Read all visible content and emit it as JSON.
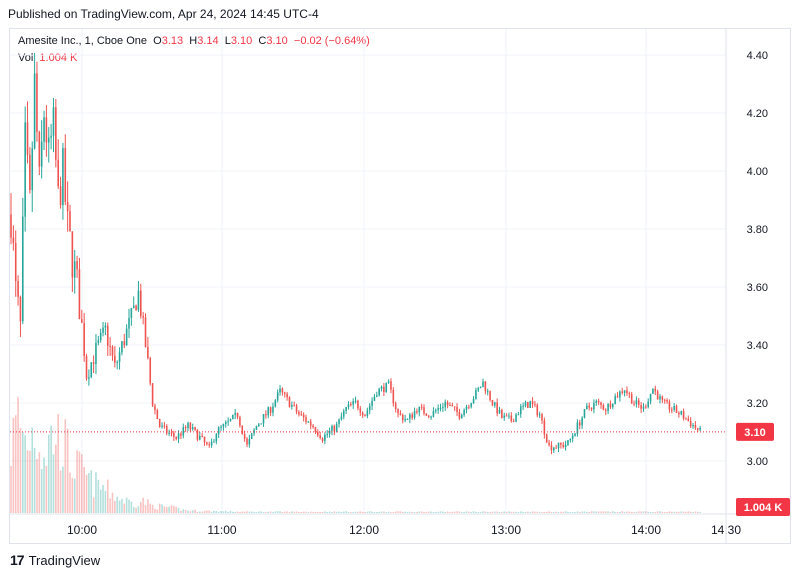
{
  "published": "Published on TradingView.com, Apr 24, 2024 14:45 UTC-4",
  "legend": {
    "symbol": "Amesite Inc., 1, Cboe One",
    "o_label": "O",
    "o": "3.13",
    "h_label": "H",
    "h": "3.14",
    "l_label": "L",
    "l": "3.10",
    "c_label": "C",
    "c": "3.10",
    "change": "−0.02 (−0.64%)",
    "vol_label": "Vol",
    "vol": "1.004 K"
  },
  "footer": {
    "brand": "TradingView"
  },
  "colors": {
    "up": "#26a69a",
    "down": "#ef5350",
    "grid": "#f0f3fa",
    "last": "#f23645"
  },
  "chart_data": {
    "type": "candlestick",
    "y_ticks": [
      "4.40",
      "4.20",
      "4.00",
      "3.80",
      "3.60",
      "3.40",
      "3.20",
      "3.00"
    ],
    "ylim": [
      2.82,
      4.49
    ],
    "x_ticks": [
      "10:00",
      "11:00",
      "12:00",
      "13:00",
      "14:00",
      "14:30"
    ],
    "last_price_label": "3.10",
    "last_price": 3.1,
    "volume_label": "1.004 K",
    "bar_count": 300,
    "close_anchors": [
      [
        0,
        3.85
      ],
      [
        2,
        3.58
      ],
      [
        4,
        3.45
      ],
      [
        6,
        4.1
      ],
      [
        8,
        3.88
      ],
      [
        10,
        4.3
      ],
      [
        12,
        3.95
      ],
      [
        14,
        4.2
      ],
      [
        16,
        4.05
      ],
      [
        18,
        4.15
      ],
      [
        20,
        3.9
      ],
      [
        22,
        4.0
      ],
      [
        24,
        3.8
      ],
      [
        26,
        3.7
      ],
      [
        29,
        3.55
      ],
      [
        32,
        3.3
      ],
      [
        36,
        3.38
      ],
      [
        40,
        3.45
      ],
      [
        44,
        3.32
      ],
      [
        48,
        3.42
      ],
      [
        52,
        3.52
      ],
      [
        54,
        3.58
      ],
      [
        57,
        3.4
      ],
      [
        60,
        3.2
      ],
      [
        63,
        3.12
      ],
      [
        66,
        3.1
      ],
      [
        70,
        3.08
      ],
      [
        75,
        3.12
      ],
      [
        80,
        3.08
      ],
      [
        84,
        3.04
      ],
      [
        87,
        3.1
      ],
      [
        92,
        3.13
      ],
      [
        96,
        3.16
      ],
      [
        100,
        3.05
      ],
      [
        104,
        3.12
      ],
      [
        110,
        3.18
      ],
      [
        114,
        3.24
      ],
      [
        118,
        3.2
      ],
      [
        122,
        3.16
      ],
      [
        128,
        3.12
      ],
      [
        132,
        3.08
      ],
      [
        138,
        3.12
      ],
      [
        142,
        3.18
      ],
      [
        146,
        3.2
      ],
      [
        150,
        3.16
      ],
      [
        155,
        3.24
      ],
      [
        160,
        3.26
      ],
      [
        164,
        3.16
      ],
      [
        168,
        3.14
      ],
      [
        172,
        3.18
      ],
      [
        178,
        3.16
      ],
      [
        184,
        3.2
      ],
      [
        190,
        3.16
      ],
      [
        196,
        3.22
      ],
      [
        200,
        3.27
      ],
      [
        204,
        3.2
      ],
      [
        208,
        3.15
      ],
      [
        212,
        3.14
      ],
      [
        216,
        3.18
      ],
      [
        220,
        3.2
      ],
      [
        224,
        3.16
      ],
      [
        228,
        3.05
      ],
      [
        232,
        3.05
      ],
      [
        236,
        3.06
      ],
      [
        240,
        3.12
      ],
      [
        244,
        3.18
      ],
      [
        248,
        3.2
      ],
      [
        252,
        3.18
      ],
      [
        256,
        3.22
      ],
      [
        260,
        3.25
      ],
      [
        264,
        3.2
      ],
      [
        268,
        3.18
      ],
      [
        272,
        3.25
      ],
      [
        276,
        3.2
      ],
      [
        280,
        3.18
      ],
      [
        284,
        3.16
      ],
      [
        288,
        3.13
      ],
      [
        292,
        3.1
      ]
    ],
    "volume_anchors": [
      [
        0,
        0.55
      ],
      [
        3,
        0.8
      ],
      [
        6,
        0.6
      ],
      [
        10,
        0.7
      ],
      [
        14,
        0.5
      ],
      [
        18,
        0.65
      ],
      [
        22,
        0.6
      ],
      [
        26,
        0.4
      ],
      [
        30,
        0.35
      ],
      [
        34,
        0.25
      ],
      [
        40,
        0.2
      ],
      [
        46,
        0.12
      ],
      [
        52,
        0.08
      ],
      [
        56,
        0.1
      ],
      [
        60,
        0.06
      ],
      [
        66,
        0.05
      ],
      [
        75,
        0.02
      ],
      [
        100,
        0.01
      ],
      [
        299,
        0.01
      ]
    ]
  }
}
